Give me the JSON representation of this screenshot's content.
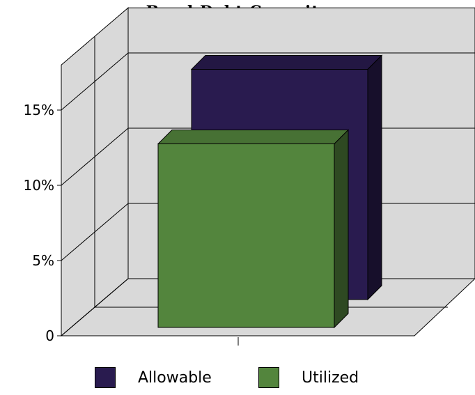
{
  "chart_data": {
    "type": "bar",
    "title": "Bond Debt Capacity",
    "categories": [
      ""
    ],
    "series": [
      {
        "name": "Allowable",
        "values": [
          15.3
        ],
        "color": "#291b4f"
      },
      {
        "name": "Utilized",
        "values": [
          12.2
        ],
        "color": "#53853d"
      }
    ],
    "ylim": [
      0,
      18
    ],
    "yticks": [
      {
        "value": 0,
        "label": "0"
      },
      {
        "value": 5,
        "label": "5%"
      },
      {
        "value": 10,
        "label": "10%"
      },
      {
        "value": 15,
        "label": "15%"
      }
    ],
    "grid": true,
    "legend_position": "bottom",
    "style": "3d"
  }
}
